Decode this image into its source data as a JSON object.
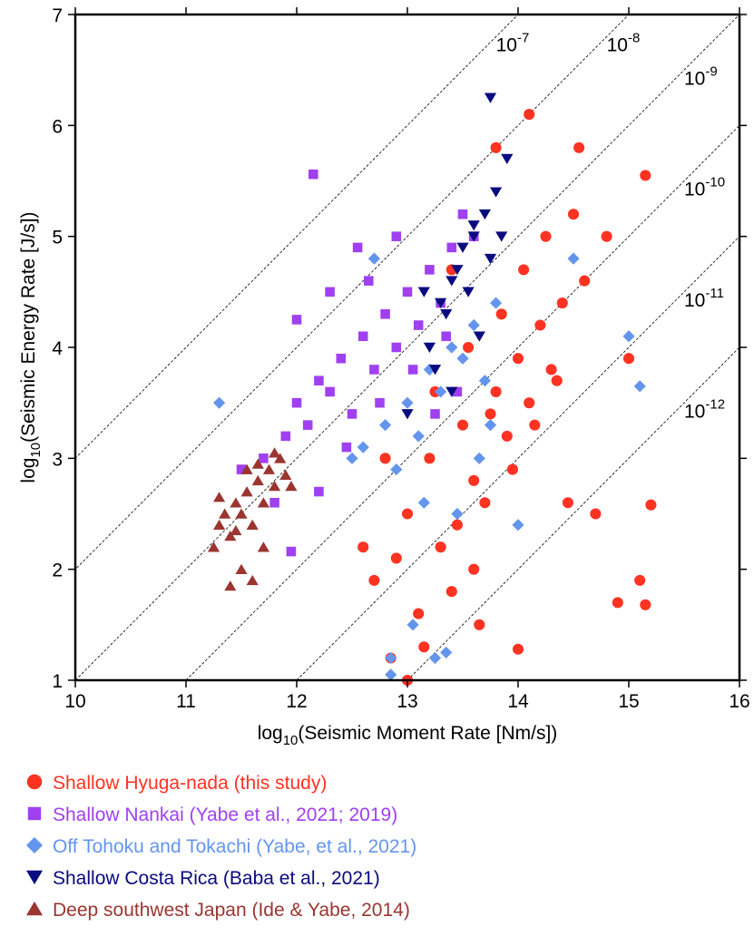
{
  "chart_data": {
    "type": "scatter",
    "x_label": {
      "prefix": "log",
      "sub": "10",
      "text": "(Seismic Moment Rate [Nm/s])"
    },
    "y_label": {
      "prefix": "log",
      "sub": "10",
      "text": "(Seismic Energy Rate [J/s])"
    },
    "xlim": [
      10,
      16
    ],
    "ylim": [
      1,
      7
    ],
    "xticks": [
      10,
      11,
      12,
      13,
      14,
      15,
      16
    ],
    "yticks": [
      1,
      2,
      3,
      4,
      5,
      6,
      7
    ],
    "ratio_lines": [
      {
        "base": "10",
        "offset": -7
      },
      {
        "base": "10",
        "offset": -8
      },
      {
        "base": "10",
        "offset": -9
      },
      {
        "base": "10",
        "offset": -10
      },
      {
        "base": "10",
        "offset": -11
      },
      {
        "base": "10",
        "offset": -12
      }
    ],
    "series": [
      {
        "name": "Shallow Hyuga-nada (this study)",
        "color": "#ff3322",
        "marker": "circle",
        "x": [
          13.0,
          13.2,
          13.5,
          13.8,
          14.0,
          14.2,
          14.4,
          13.6,
          13.9,
          14.1,
          13.3,
          13.7,
          14.3,
          14.6,
          14.8,
          15.0,
          15.15,
          15.2,
          12.7,
          12.9,
          13.1,
          13.4,
          12.8,
          13.55,
          13.85,
          14.05,
          14.25,
          14.5,
          13.75,
          13.45,
          13.95,
          14.15,
          14.35,
          14.7,
          12.6,
          13.15,
          13.65,
          14.9,
          15.1,
          14.1,
          13.8,
          13.4,
          13.0,
          14.45,
          13.6,
          12.85,
          14.0,
          13.25,
          14.55,
          15.15
        ],
        "y": [
          2.5,
          3.0,
          3.3,
          3.6,
          3.9,
          4.2,
          4.4,
          2.8,
          3.2,
          3.5,
          2.2,
          2.6,
          3.8,
          4.6,
          5.0,
          3.9,
          5.55,
          2.58,
          1.9,
          2.1,
          1.6,
          1.8,
          3.0,
          4.0,
          4.3,
          4.7,
          5.0,
          5.2,
          3.4,
          2.4,
          2.9,
          3.3,
          3.7,
          2.5,
          2.2,
          1.3,
          1.5,
          1.7,
          1.9,
          6.1,
          5.8,
          4.7,
          1.0,
          2.6,
          2.0,
          1.2,
          1.28,
          3.6,
          5.8,
          1.68
        ]
      },
      {
        "name": "Shallow Nankai (Yabe et al., 2021; 2019)",
        "color": "#a040f0",
        "marker": "square",
        "x": [
          11.5,
          11.7,
          11.9,
          12.0,
          12.2,
          12.4,
          12.6,
          12.8,
          13.0,
          13.2,
          13.4,
          13.6,
          12.1,
          12.3,
          12.5,
          12.7,
          12.9,
          13.1,
          13.3,
          11.8,
          12.2,
          12.45,
          12.75,
          13.05,
          13.35,
          12.9,
          11.95,
          12.55,
          13.5,
          12.0,
          12.3,
          12.65,
          13.25,
          13.45,
          12.15
        ],
        "y": [
          2.9,
          3.0,
          3.2,
          3.5,
          3.7,
          3.9,
          4.1,
          4.3,
          4.5,
          4.7,
          4.9,
          5.0,
          3.3,
          3.6,
          3.4,
          3.8,
          4.0,
          4.2,
          4.4,
          2.6,
          2.7,
          3.1,
          3.5,
          3.8,
          4.1,
          5.0,
          2.16,
          4.9,
          5.2,
          4.25,
          4.5,
          4.6,
          3.4,
          3.6,
          5.56
        ]
      },
      {
        "name": "Off Tohoku and Tokachi (Yabe, et al., 2021)",
        "color": "#6495ed",
        "marker": "diamond",
        "x": [
          11.3,
          12.5,
          12.8,
          13.0,
          13.2,
          13.4,
          13.6,
          13.8,
          12.9,
          13.1,
          13.3,
          13.5,
          13.7,
          12.7,
          12.85,
          13.25,
          13.35,
          14.0,
          14.5,
          15.0,
          15.1,
          12.85,
          13.05,
          13.45,
          13.65,
          13.75,
          12.6,
          13.15
        ],
        "y": [
          3.5,
          3.0,
          3.3,
          3.5,
          3.8,
          4.0,
          4.2,
          4.4,
          2.9,
          3.2,
          3.6,
          3.9,
          3.7,
          4.8,
          1.05,
          1.2,
          1.25,
          2.4,
          4.8,
          4.1,
          3.65,
          1.2,
          1.5,
          2.5,
          3.0,
          3.3,
          3.1,
          2.6
        ]
      },
      {
        "name": "Shallow Costa Rica (Baba et al., 2021)",
        "color": "#0a0a80",
        "marker": "triangle-down",
        "x": [
          13.0,
          13.2,
          13.3,
          13.4,
          13.5,
          13.6,
          13.7,
          13.8,
          13.9,
          13.35,
          13.45,
          13.55,
          13.65,
          13.75,
          13.85,
          13.25,
          13.15,
          13.6,
          13.75,
          13.4
        ],
        "y": [
          3.4,
          4.0,
          4.4,
          4.6,
          4.9,
          5.0,
          5.2,
          5.4,
          5.7,
          4.3,
          4.7,
          4.5,
          4.1,
          4.8,
          5.0,
          3.8,
          4.5,
          5.1,
          6.25,
          3.6
        ]
      },
      {
        "name": "Deep southwest Japan (Ide & Yabe, 2014)",
        "color": "#9b3530",
        "marker": "triangle-up",
        "x": [
          11.25,
          11.3,
          11.4,
          11.45,
          11.5,
          11.55,
          11.6,
          11.65,
          11.7,
          11.75,
          11.8,
          11.85,
          11.9,
          11.35,
          11.5,
          11.6,
          11.7,
          11.45,
          11.55,
          11.8,
          11.95,
          11.3,
          11.65,
          11.4
        ],
        "y": [
          2.2,
          2.4,
          2.3,
          2.6,
          2.5,
          2.7,
          2.4,
          2.8,
          2.6,
          2.9,
          2.75,
          3.0,
          2.85,
          2.5,
          2.0,
          1.9,
          2.2,
          2.35,
          2.9,
          3.05,
          2.75,
          2.65,
          2.95,
          1.85
        ]
      }
    ]
  }
}
